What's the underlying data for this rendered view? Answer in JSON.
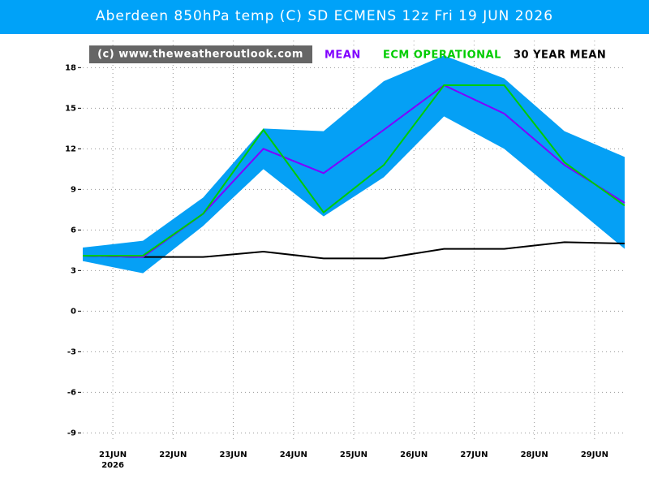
{
  "chart_data": {
    "type": "line",
    "title": "Aberdeen 850hPa temp (C) SD ECMENS 12z Fri 19 JUN 2026",
    "watermark": "(c) www.theweatheroutlook.com",
    "x": [
      20.5,
      21.5,
      22.5,
      23.5,
      24.5,
      25.5,
      26.5,
      27.5,
      28.5,
      29.5
    ],
    "xlim": [
      20.5,
      29.5
    ],
    "xticks": [
      {
        "value": 21,
        "label": "21JUN"
      },
      {
        "value": 22,
        "label": "22JUN"
      },
      {
        "value": 23,
        "label": "23JUN"
      },
      {
        "value": 24,
        "label": "24JUN"
      },
      {
        "value": 25,
        "label": "25JUN"
      },
      {
        "value": 26,
        "label": "26JUN"
      },
      {
        "value": 27,
        "label": "27JUN"
      },
      {
        "value": 28,
        "label": "28JUN"
      },
      {
        "value": 29,
        "label": "29JUN"
      }
    ],
    "x_year_label": "2026",
    "ylim": [
      -9.7,
      20
    ],
    "yticks": [
      18,
      15,
      12,
      9,
      6,
      3,
      0,
      -3,
      -6,
      -9
    ],
    "grid": true,
    "band": {
      "color": "#05a0f5",
      "upper": [
        4.7,
        5.2,
        8.4,
        13.5,
        13.3,
        17.0,
        18.9,
        17.2,
        13.3,
        11.4
      ],
      "lower": [
        3.7,
        2.8,
        6.3,
        10.5,
        7.0,
        9.9,
        14.4,
        12.0,
        8.3,
        4.6
      ]
    },
    "series": [
      {
        "name": "MEAN",
        "color": "#8000ff",
        "values": [
          4.1,
          4.0,
          7.2,
          12.0,
          10.2,
          13.4,
          16.7,
          14.6,
          10.8,
          8.0
        ]
      },
      {
        "name": "ECM OPERATIONAL",
        "color": "#00cc00",
        "values": [
          4.1,
          4.1,
          7.2,
          13.4,
          7.3,
          10.8,
          16.7,
          16.7,
          11.0,
          7.8
        ]
      },
      {
        "name": "30 YEAR MEAN",
        "color": "#000000",
        "values": [
          4.1,
          4.0,
          4.0,
          4.4,
          3.9,
          3.9,
          4.6,
          4.6,
          5.1,
          5.0
        ]
      }
    ]
  }
}
